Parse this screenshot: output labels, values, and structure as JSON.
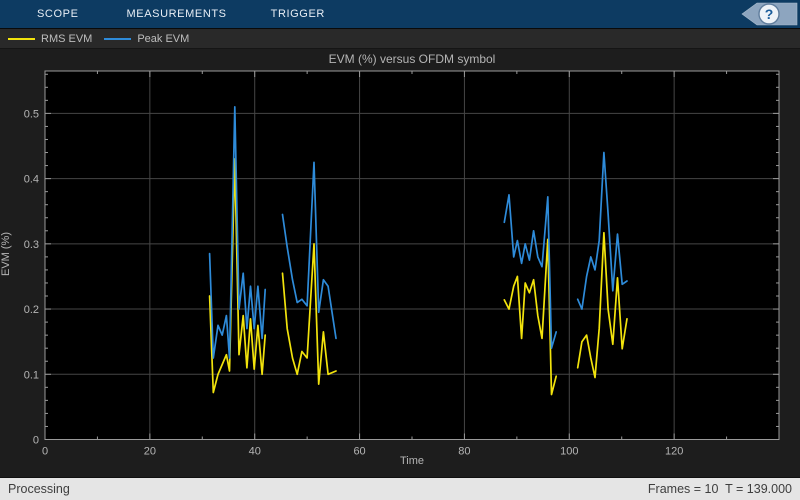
{
  "toolbar": {
    "tabs": [
      {
        "label": "SCOPE"
      },
      {
        "label": "MEASUREMENTS"
      },
      {
        "label": "TRIGGER"
      }
    ],
    "help_label": "?"
  },
  "legend": {
    "items": [
      {
        "label": "RMS EVM",
        "color": "#f2e30c"
      },
      {
        "label": "Peak EVM",
        "color": "#2e8bd9"
      }
    ]
  },
  "status_bar": {
    "left": "Processing",
    "right": "Frames = 10  T = 139.000"
  },
  "chart_data": {
    "type": "line",
    "title": "EVM (%) versus OFDM symbol",
    "xlabel": "Time",
    "ylabel": "EVM (%)",
    "xlim": [
      0,
      140
    ],
    "ylim": [
      0,
      0.565
    ],
    "xticks": [
      0,
      20,
      40,
      60,
      80,
      100,
      120
    ],
    "yticks": [
      0,
      0.1,
      0.2,
      0.3,
      0.4,
      0.5
    ],
    "x_minor_step": 10,
    "y_minor_step": 0.02,
    "grid": true,
    "legend_position": "top-toolbar",
    "colors": {
      "plot_bg": "#000000",
      "panel_bg": "#1d1d1d",
      "grid": "#464646",
      "axis": "#9a9a9a",
      "tick_label": "#b5b5b5",
      "banner": "#0d3b62",
      "rms": "#f2e30c",
      "peak": "#2e8bd9"
    },
    "series": [
      {
        "name": "RMS EVM",
        "color": "#f2e30c",
        "segments": [
          {
            "x": [
              31.4,
              32.1,
              33.0,
              33.8,
              34.6,
              35.2,
              36.2,
              37.0,
              37.8,
              38.5,
              39.2,
              39.9,
              40.6,
              41.4,
              42.0
            ],
            "y": [
              0.22,
              0.072,
              0.1,
              0.115,
              0.13,
              0.105,
              0.43,
              0.13,
              0.19,
              0.11,
              0.185,
              0.108,
              0.175,
              0.1,
              0.16
            ]
          },
          {
            "x": [
              45.3,
              46.2,
              47.2,
              48.1,
              49.0,
              50.0,
              51.3,
              52.2,
              53.1,
              54.0,
              55.5
            ],
            "y": [
              0.255,
              0.17,
              0.125,
              0.1,
              0.135,
              0.125,
              0.3,
              0.085,
              0.165,
              0.1,
              0.105
            ]
          },
          {
            "x": [
              87.6,
              88.5,
              89.4,
              90.1,
              90.9,
              91.6,
              92.4,
              93.2,
              94.0,
              94.8,
              95.9,
              96.6,
              97.5
            ],
            "y": [
              0.214,
              0.2,
              0.235,
              0.25,
              0.155,
              0.24,
              0.225,
              0.245,
              0.19,
              0.155,
              0.307,
              0.069,
              0.097
            ]
          },
          {
            "x": [
              101.6,
              102.4,
              103.3,
              104.1,
              104.9,
              105.7,
              106.6,
              107.4,
              108.3,
              109.2,
              110.1,
              111.0
            ],
            "y": [
              0.11,
              0.15,
              0.16,
              0.125,
              0.095,
              0.17,
              0.317,
              0.2,
              0.146,
              0.248,
              0.139,
              0.185
            ]
          }
        ]
      },
      {
        "name": "Peak EVM",
        "color": "#2e8bd9",
        "segments": [
          {
            "x": [
              31.4,
              32.1,
              33.0,
              33.8,
              34.6,
              35.2,
              36.2,
              37.0,
              37.8,
              38.5,
              39.2,
              39.9,
              40.6,
              41.4,
              42.0
            ],
            "y": [
              0.285,
              0.125,
              0.175,
              0.16,
              0.19,
              0.125,
              0.51,
              0.2,
              0.255,
              0.17,
              0.235,
              0.17,
              0.235,
              0.155,
              0.23
            ]
          },
          {
            "x": [
              45.3,
              46.2,
              47.2,
              48.1,
              49.0,
              50.0,
              51.3,
              52.2,
              53.1,
              54.0,
              55.5
            ],
            "y": [
              0.345,
              0.295,
              0.245,
              0.21,
              0.215,
              0.205,
              0.425,
              0.195,
              0.245,
              0.235,
              0.155
            ]
          },
          {
            "x": [
              87.6,
              88.5,
              89.4,
              90.1,
              90.9,
              91.6,
              92.4,
              93.2,
              94.0,
              94.8,
              95.9,
              96.6,
              97.5
            ],
            "y": [
              0.333,
              0.375,
              0.28,
              0.305,
              0.27,
              0.3,
              0.275,
              0.32,
              0.28,
              0.265,
              0.372,
              0.14,
              0.165
            ]
          },
          {
            "x": [
              101.6,
              102.4,
              103.3,
              104.1,
              104.9,
              105.7,
              106.6,
              107.4,
              108.3,
              109.2,
              110.1,
              111.0
            ],
            "y": [
              0.215,
              0.2,
              0.25,
              0.28,
              0.26,
              0.305,
              0.44,
              0.346,
              0.228,
              0.315,
              0.238,
              0.243
            ]
          }
        ]
      }
    ]
  }
}
